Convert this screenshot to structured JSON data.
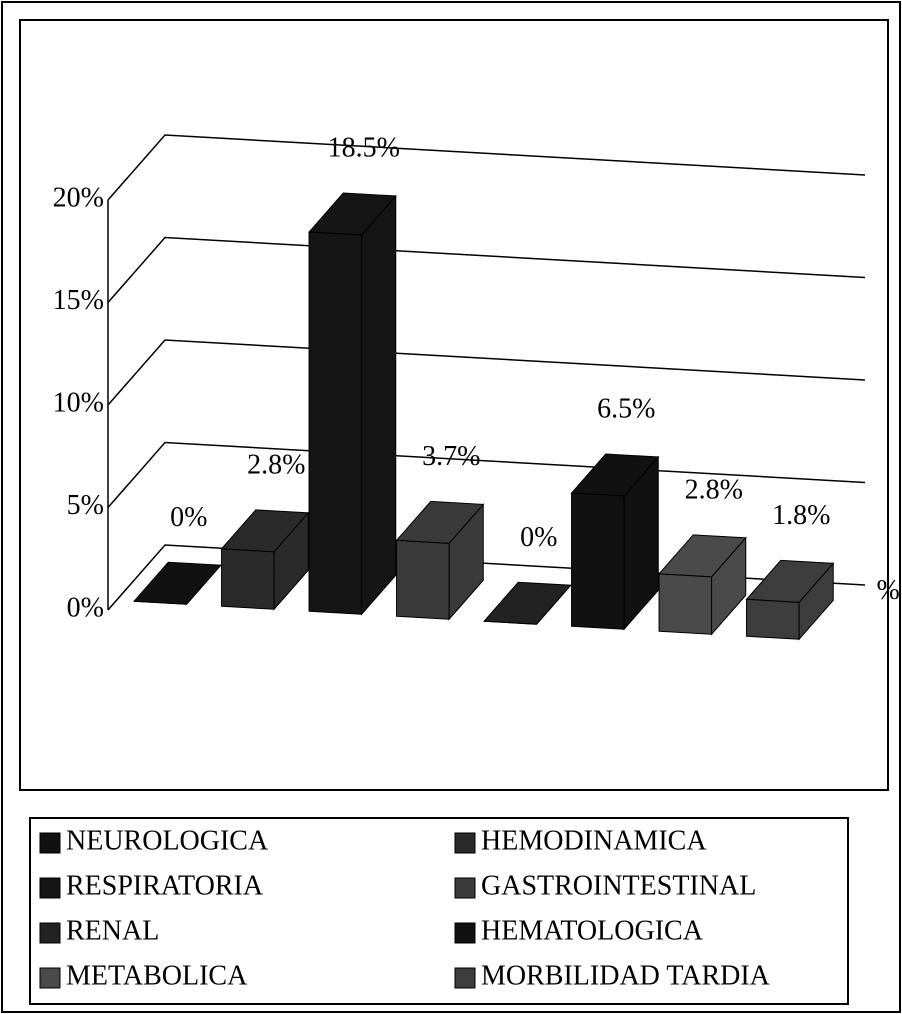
{
  "chart_data": {
    "type": "bar3d",
    "categories": [
      "NEUROLOGICA",
      "HEMODINAMICA",
      "RESPIRATORIA",
      "GASTROINTESTINAL",
      "RENAL",
      "HEMATOLOGICA",
      "METABOLICA",
      "MORBILIDAD TARDIA"
    ],
    "colors": [
      "#111111",
      "#2a2a2a",
      "#151515",
      "#3a3a3a",
      "#222222",
      "#111111",
      "#4a4a4a",
      "#3d3d3d"
    ],
    "series": [
      {
        "name": "%",
        "values": [
          0,
          2.8,
          18.5,
          3.7,
          0,
          6.5,
          2.8,
          1.8
        ],
        "value_labels": [
          "0%",
          "2.8%",
          "18.5%",
          "3.7%",
          "0%",
          "6.5%",
          "2.8%",
          "1.8%"
        ]
      }
    ],
    "ylim": [
      0,
      20
    ],
    "yticks": [
      {
        "value": 0,
        "label": "0%"
      },
      {
        "value": 5,
        "label": "5%"
      },
      {
        "value": 10,
        "label": "10%"
      },
      {
        "value": 15,
        "label": "15%"
      },
      {
        "value": 20,
        "label": "20%"
      }
    ],
    "grid": true,
    "legend": "bottom"
  }
}
